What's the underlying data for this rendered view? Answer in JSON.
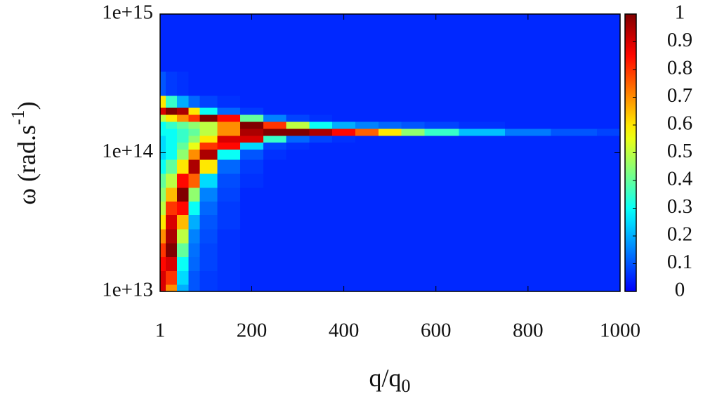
{
  "chart_data": {
    "type": "heatmap",
    "colormap": "jet",
    "xlabel": "q/q",
    "xlabel_sub": "0",
    "ylabel": "ω (rad.s",
    "ylabel_sup": "-1",
    "ylabel_end": ")",
    "ylog": true,
    "xlim": [
      1,
      1000
    ],
    "xticks": [
      1,
      200,
      400,
      600,
      800,
      1000
    ],
    "ylim": [
      10000000000000.0,
      1000000000000000.0
    ],
    "yticks": [
      {
        "value": 10000000000000.0,
        "label": "1e+13"
      },
      {
        "value": 100000000000000.0,
        "label": "1e+14"
      },
      {
        "value": 1000000000000000.0,
        "label": "1e+15"
      }
    ],
    "zlim": [
      0,
      1
    ],
    "zticks": [
      0,
      0.1,
      0.2,
      0.3,
      0.4,
      0.5,
      0.6,
      0.7,
      0.8,
      0.9,
      1
    ],
    "x": [
      1,
      25,
      50,
      75,
      100,
      150,
      200,
      250,
      300,
      350,
      400,
      450,
      500,
      550,
      600,
      700,
      800,
      900,
      1000
    ],
    "y": [
      10000000000000.0,
      12600000000000.0,
      15800000000000.0,
      20000000000000.0,
      25000000000000.0,
      32000000000000.0,
      40000000000000.0,
      50000000000000.0,
      63000000000000.0,
      80000000000000.0,
      100000000000000.0,
      112000000000000.0,
      126000000000000.0,
      141000000000000.0,
      158000000000000.0,
      178000000000000.0,
      200000000000000.0,
      224000000000000.0,
      300000000000000.0,
      500000000000000.0,
      1000000000000000.0
    ],
    "z": [
      [
        0.9,
        0.7,
        0.2,
        0.1,
        0.07,
        0.06,
        0.05,
        0.05,
        0.05,
        0.05,
        0.05,
        0.05,
        0.05,
        0.05,
        0.05,
        0.05,
        0.05,
        0.05,
        0.05
      ],
      [
        0.9,
        0.8,
        0.25,
        0.1,
        0.07,
        0.06,
        0.05,
        0.05,
        0.05,
        0.05,
        0.05,
        0.05,
        0.05,
        0.05,
        0.05,
        0.05,
        0.05,
        0.05,
        0.05
      ],
      [
        0.85,
        0.9,
        0.3,
        0.12,
        0.08,
        0.06,
        0.05,
        0.05,
        0.05,
        0.05,
        0.05,
        0.05,
        0.05,
        0.05,
        0.05,
        0.05,
        0.05,
        0.05,
        0.05
      ],
      [
        0.8,
        1,
        0.4,
        0.13,
        0.08,
        0.06,
        0.05,
        0.05,
        0.05,
        0.05,
        0.05,
        0.05,
        0.05,
        0.05,
        0.05,
        0.05,
        0.05,
        0.05,
        0.05
      ],
      [
        0.7,
        0.95,
        0.5,
        0.15,
        0.09,
        0.06,
        0.05,
        0.05,
        0.05,
        0.05,
        0.05,
        0.05,
        0.05,
        0.05,
        0.05,
        0.05,
        0.05,
        0.05,
        0.05
      ],
      [
        0.6,
        0.9,
        0.65,
        0.2,
        0.1,
        0.07,
        0.05,
        0.05,
        0.05,
        0.05,
        0.05,
        0.05,
        0.05,
        0.05,
        0.05,
        0.05,
        0.05,
        0.05,
        0.05
      ],
      [
        0.5,
        0.8,
        0.85,
        0.3,
        0.12,
        0.07,
        0.05,
        0.05,
        0.05,
        0.05,
        0.05,
        0.05,
        0.05,
        0.05,
        0.05,
        0.05,
        0.05,
        0.05,
        0.05
      ],
      [
        0.45,
        0.65,
        1,
        0.45,
        0.15,
        0.08,
        0.05,
        0.05,
        0.05,
        0.05,
        0.05,
        0.05,
        0.05,
        0.05,
        0.05,
        0.05,
        0.05,
        0.05,
        0.05
      ],
      [
        0.4,
        0.5,
        0.85,
        0.75,
        0.25,
        0.09,
        0.06,
        0.05,
        0.05,
        0.05,
        0.05,
        0.05,
        0.05,
        0.05,
        0.05,
        0.05,
        0.05,
        0.05,
        0.05
      ],
      [
        0.3,
        0.4,
        0.6,
        0.95,
        0.6,
        0.12,
        0.07,
        0.05,
        0.05,
        0.05,
        0.05,
        0.05,
        0.05,
        0.05,
        0.05,
        0.05,
        0.05,
        0.05,
        0.05
      ],
      [
        0.25,
        0.3,
        0.45,
        0.7,
        0.95,
        0.3,
        0.1,
        0.06,
        0.05,
        0.05,
        0.05,
        0.05,
        0.05,
        0.05,
        0.05,
        0.05,
        0.05,
        0.05,
        0.05
      ],
      [
        0.25,
        0.3,
        0.4,
        0.55,
        0.8,
        0.85,
        0.25,
        0.08,
        0.06,
        0.05,
        0.05,
        0.05,
        0.05,
        0.05,
        0.05,
        0.05,
        0.05,
        0.05,
        0.05
      ],
      [
        0.25,
        0.3,
        0.35,
        0.45,
        0.6,
        0.9,
        0.9,
        0.35,
        0.12,
        0.08,
        0.06,
        0.05,
        0.05,
        0.05,
        0.05,
        0.05,
        0.05,
        0.05,
        0.05
      ],
      [
        0.3,
        0.3,
        0.35,
        0.4,
        0.5,
        0.7,
        0.95,
        1,
        1,
        0.95,
        0.85,
        0.75,
        0.6,
        0.45,
        0.35,
        0.22,
        0.14,
        0.1,
        0.08
      ],
      [
        0.3,
        0.35,
        0.4,
        0.45,
        0.5,
        0.7,
        1,
        0.8,
        0.5,
        0.3,
        0.2,
        0.15,
        0.12,
        0.1,
        0.08,
        0.06,
        0.05,
        0.05,
        0.05
      ],
      [
        0.5,
        0.6,
        0.7,
        0.8,
        1,
        0.85,
        0.4,
        0.15,
        0.08,
        0.06,
        0.05,
        0.05,
        0.05,
        0.05,
        0.05,
        0.05,
        0.05,
        0.05,
        0.05
      ],
      [
        0.9,
        1,
        0.95,
        0.6,
        0.3,
        0.12,
        0.07,
        0.05,
        0.05,
        0.05,
        0.05,
        0.05,
        0.05,
        0.05,
        0.05,
        0.05,
        0.05,
        0.05,
        0.05
      ],
      [
        0.6,
        0.35,
        0.2,
        0.12,
        0.08,
        0.06,
        0.05,
        0.05,
        0.05,
        0.05,
        0.05,
        0.05,
        0.05,
        0.05,
        0.05,
        0.05,
        0.05,
        0.05,
        0.05
      ],
      [
        0.1,
        0.07,
        0.06,
        0.05,
        0.05,
        0.05,
        0.05,
        0.05,
        0.05,
        0.05,
        0.05,
        0.05,
        0.05,
        0.05,
        0.05,
        0.05,
        0.05,
        0.05,
        0.05
      ],
      [
        0.05,
        0.05,
        0.05,
        0.05,
        0.05,
        0.05,
        0.05,
        0.05,
        0.05,
        0.05,
        0.05,
        0.05,
        0.05,
        0.05,
        0.05,
        0.05,
        0.05,
        0.05,
        0.05
      ],
      [
        0.05,
        0.05,
        0.05,
        0.05,
        0.05,
        0.05,
        0.05,
        0.05,
        0.05,
        0.05,
        0.05,
        0.05,
        0.05,
        0.05,
        0.05,
        0.05,
        0.05,
        0.05,
        0.05
      ]
    ]
  }
}
